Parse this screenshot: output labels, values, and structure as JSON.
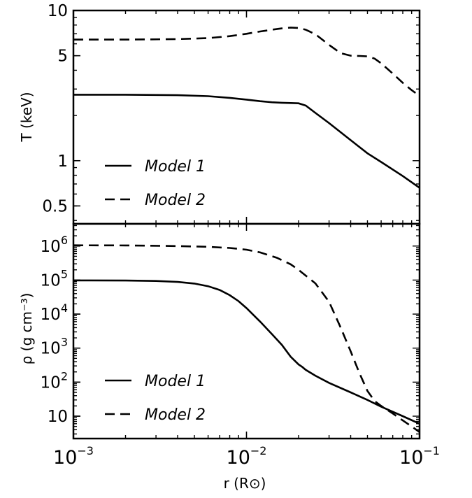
{
  "chart_data": [
    {
      "type": "line",
      "panel": "top",
      "ylabel": "T (keV)",
      "xscale": "log",
      "yscale": "log",
      "xlim": [
        0.001,
        0.1
      ],
      "ylim": [
        0.38,
        10
      ],
      "yticks": [
        {
          "value": 0.5,
          "label": "0.5"
        },
        {
          "value": 1,
          "label": "1"
        },
        {
          "value": 5,
          "label": "5"
        },
        {
          "value": 10,
          "label": "10"
        }
      ],
      "legend": "lower-left",
      "series": [
        {
          "name": "Model 1",
          "style": "solid",
          "x": [
            0.001,
            0.002,
            0.004,
            0.006,
            0.008,
            0.01,
            0.012,
            0.014,
            0.016,
            0.018,
            0.02,
            0.022,
            0.025,
            0.03,
            0.04,
            0.05,
            0.06,
            0.08,
            0.1
          ],
          "y": [
            2.75,
            2.75,
            2.73,
            2.69,
            2.62,
            2.55,
            2.49,
            2.45,
            2.43,
            2.42,
            2.41,
            2.33,
            2.08,
            1.78,
            1.37,
            1.12,
            0.98,
            0.79,
            0.66
          ]
        },
        {
          "name": "Model 2",
          "style": "dashed",
          "x": [
            0.001,
            0.002,
            0.004,
            0.006,
            0.008,
            0.01,
            0.012,
            0.014,
            0.016,
            0.018,
            0.02,
            0.022,
            0.025,
            0.03,
            0.035,
            0.04,
            0.045,
            0.05,
            0.055,
            0.06,
            0.07,
            0.08,
            0.09,
            0.1
          ],
          "y": [
            6.4,
            6.4,
            6.45,
            6.55,
            6.75,
            7.0,
            7.25,
            7.45,
            7.6,
            7.7,
            7.65,
            7.45,
            6.95,
            5.9,
            5.2,
            5.0,
            4.98,
            4.95,
            4.78,
            4.45,
            3.8,
            3.3,
            2.95,
            2.7
          ]
        }
      ]
    },
    {
      "type": "line",
      "panel": "bottom",
      "ylabel": "ρ (g cm⁻³)",
      "xlabel": "r (R⊙)",
      "xscale": "log",
      "yscale": "log",
      "xlim": [
        0.001,
        0.1
      ],
      "ylim": [
        2.2,
        4500000
      ],
      "xticks": [
        {
          "value": 0.001,
          "base": "10",
          "exp": "−3"
        },
        {
          "value": 0.01,
          "base": "10",
          "exp": "−2"
        },
        {
          "value": 0.1,
          "base": "10",
          "exp": "−1"
        }
      ],
      "yticks": [
        {
          "value": 10,
          "base": "10",
          "exp": ""
        },
        {
          "value": 100,
          "base": "10",
          "exp": "2"
        },
        {
          "value": 1000,
          "base": "10",
          "exp": "3"
        },
        {
          "value": 10000,
          "base": "10",
          "exp": "4"
        },
        {
          "value": 100000,
          "base": "10",
          "exp": "5"
        },
        {
          "value": 1000000,
          "base": "10",
          "exp": "6"
        }
      ],
      "legend": "lower-left",
      "series": [
        {
          "name": "Model 1",
          "style": "solid",
          "x": [
            0.001,
            0.002,
            0.003,
            0.004,
            0.005,
            0.006,
            0.007,
            0.008,
            0.009,
            0.01,
            0.012,
            0.014,
            0.016,
            0.018,
            0.02,
            0.021,
            0.022,
            0.025,
            0.03,
            0.04,
            0.05,
            0.06,
            0.08,
            0.1
          ],
          "y": [
            98000,
            97000,
            94000,
            88000,
            79000,
            66000,
            51000,
            36000,
            24000,
            15000,
            6000,
            2600,
            1250,
            560,
            330,
            280,
            230,
            155,
            95,
            50,
            30,
            19,
            10,
            6
          ]
        },
        {
          "name": "Model 2",
          "style": "dashed",
          "x": [
            0.001,
            0.002,
            0.004,
            0.006,
            0.008,
            0.01,
            0.012,
            0.015,
            0.018,
            0.02,
            0.025,
            0.03,
            0.035,
            0.04,
            0.045,
            0.05,
            0.055,
            0.06,
            0.07,
            0.08,
            0.09,
            0.1
          ],
          "y": [
            1050000,
            1040000,
            1000000,
            950000,
            880000,
            780000,
            650000,
            450000,
            290000,
            200000,
            80000,
            23000,
            4000,
            800,
            180,
            55,
            28,
            20,
            12,
            7.5,
            5,
            3.4
          ]
        }
      ]
    }
  ]
}
